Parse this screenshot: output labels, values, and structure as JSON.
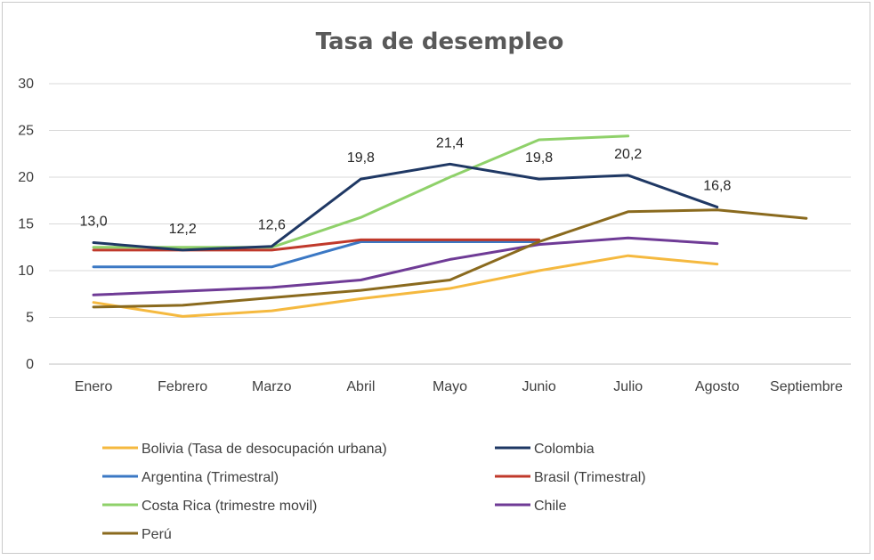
{
  "chart_data": {
    "type": "line",
    "title": "Tasa de desempleo",
    "xlabel": "",
    "ylabel": "",
    "categories": [
      "Enero",
      "Febrero",
      "Marzo",
      "Abril",
      "Mayo",
      "Junio",
      "Julio",
      "Agosto",
      "Septiembre"
    ],
    "ylim": [
      0,
      30
    ],
    "yticks": [
      0,
      5,
      10,
      15,
      20,
      25,
      30
    ],
    "grid": true,
    "legend_position": "bottom",
    "series": [
      {
        "name": "Bolivia (Tasa de desocupación urbana)",
        "color": "#f5b93f",
        "values": [
          6.6,
          5.1,
          5.7,
          7.0,
          8.1,
          10.0,
          11.6,
          10.7,
          null
        ]
      },
      {
        "name": "Colombia",
        "color": "#1f3864",
        "values": [
          13.0,
          12.2,
          12.6,
          19.8,
          21.4,
          19.8,
          20.2,
          16.8,
          null
        ],
        "labels": [
          "13,0",
          "12,2",
          "12,6",
          "19,8",
          "21,4",
          "19,8",
          "20,2",
          "16,8",
          null
        ]
      },
      {
        "name": "Argentina (Trimestral)",
        "color": "#3b78c4",
        "values": [
          10.4,
          10.4,
          10.4,
          13.1,
          13.1,
          13.1,
          null,
          null,
          null
        ]
      },
      {
        "name": "Brasil (Trimestral)",
        "color": "#c0392b",
        "values": [
          12.2,
          12.2,
          12.2,
          13.3,
          13.3,
          13.3,
          null,
          null,
          null
        ]
      },
      {
        "name": "Costa Rica (trimestre movil)",
        "color": "#8fd16a",
        "values": [
          12.5,
          12.5,
          12.5,
          15.7,
          20.0,
          24.0,
          24.4,
          null,
          null
        ]
      },
      {
        "name": "Chile",
        "color": "#6f3b96",
        "values": [
          7.4,
          7.8,
          8.2,
          9.0,
          11.2,
          12.8,
          13.5,
          12.9,
          null
        ]
      },
      {
        "name": "Perú",
        "color": "#8a6a1e",
        "values": [
          6.1,
          6.3,
          7.1,
          7.9,
          9.0,
          13.1,
          16.3,
          16.5,
          15.6
        ]
      }
    ]
  }
}
